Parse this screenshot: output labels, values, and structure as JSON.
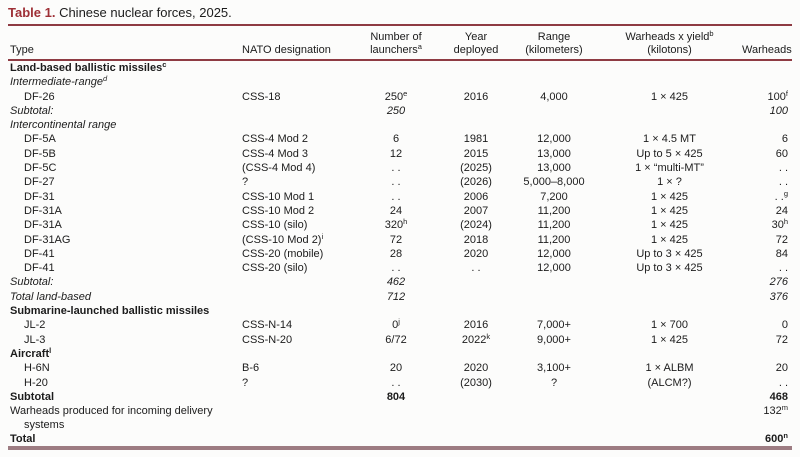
{
  "title": {
    "label": "Table 1.",
    "text": " Chinese nuclear forces, 2025."
  },
  "colors": {
    "accent_maroon": "#9e2f36",
    "rule_maroon": "#8e3b43",
    "bottom_rule": "#9d7c82",
    "text": "#1c1c1c",
    "background": "#fcfcfb"
  },
  "table": {
    "columns": [
      {
        "lines": [
          "Type"
        ],
        "align": "left"
      },
      {
        "lines": [
          "NATO designation"
        ],
        "align": "left"
      },
      {
        "lines": [
          "Number of",
          "launchers^a"
        ],
        "align": "center"
      },
      {
        "lines": [
          "Year",
          "deployed"
        ],
        "align": "center"
      },
      {
        "lines": [
          "Range",
          "(kilometers)"
        ],
        "align": "center"
      },
      {
        "lines": [
          "Warheads x yield^b",
          "(kilotons)"
        ],
        "align": "center"
      },
      {
        "lines": [
          "Warheads"
        ],
        "align": "right"
      }
    ],
    "rows": [
      {
        "style": "section",
        "cells": [
          "Land-based ballistic missiles^c",
          "",
          "",
          "",
          "",
          "",
          ""
        ]
      },
      {
        "style": "subsection",
        "cells": [
          "Intermediate-range^d",
          "",
          "",
          "",
          "",
          "",
          ""
        ]
      },
      {
        "style": "data",
        "cells": [
          "DF-26",
          "CSS-18",
          "250^e",
          "2016",
          "4,000",
          "1 × 425",
          "100^f"
        ]
      },
      {
        "style": "subtotal",
        "cells": [
          "Subtotal:",
          "",
          "250",
          "",
          "",
          "",
          "100"
        ]
      },
      {
        "style": "subsection",
        "cells": [
          "Intercontinental range",
          "",
          "",
          "",
          "",
          "",
          ""
        ]
      },
      {
        "style": "data",
        "cells": [
          "DF-5A",
          "CSS-4 Mod 2",
          "6",
          "1981",
          "12,000",
          "1 × 4.5 MT",
          "6"
        ]
      },
      {
        "style": "data",
        "cells": [
          "DF-5B",
          "CSS-4 Mod 3",
          "12",
          "2015",
          "13,000",
          "Up to 5 × 425",
          "60"
        ]
      },
      {
        "style": "data",
        "cells": [
          "DF-5C",
          "(CSS-4 Mod 4)",
          ". .",
          "(2025)",
          "13,000",
          "1 × “multi-MT”",
          ". ."
        ]
      },
      {
        "style": "data",
        "cells": [
          "DF-27",
          "?",
          ". .",
          "(2026)",
          "5,000–8,000",
          "1 × ?",
          ". ."
        ]
      },
      {
        "style": "data",
        "cells": [
          "DF-31",
          "CSS-10 Mod 1",
          ". .",
          "2006",
          "7,200",
          "1 × 425",
          ". .^g"
        ]
      },
      {
        "style": "data",
        "cells": [
          "DF-31A",
          "CSS-10 Mod 2",
          "24",
          "2007",
          "11,200",
          "1 × 425",
          "24"
        ]
      },
      {
        "style": "data",
        "cells": [
          "DF-31A",
          "CSS-10 (silo)",
          "320^h",
          "(2024)",
          "11,200",
          "1 × 425",
          "30^h"
        ]
      },
      {
        "style": "data",
        "cells": [
          "DF-31AG",
          "(CSS-10 Mod 2)^i",
          "72",
          "2018",
          "11,200",
          "1 × 425",
          "72"
        ]
      },
      {
        "style": "data",
        "cells": [
          "DF-41",
          "CSS-20 (mobile)",
          "28",
          "2020",
          "12,000",
          "Up to 3 × 425",
          "84"
        ]
      },
      {
        "style": "data",
        "cells": [
          "DF-41",
          "CSS-20 (silo)",
          ". .",
          ". .",
          "12,000",
          "Up to 3 × 425",
          ". ."
        ]
      },
      {
        "style": "subtotal",
        "cells": [
          "Subtotal:",
          "",
          "462",
          "",
          "",
          "",
          "276"
        ]
      },
      {
        "style": "subtotal",
        "cells": [
          "Total land-based",
          "",
          "712",
          "",
          "",
          "",
          "376"
        ]
      },
      {
        "style": "section",
        "cells": [
          "Submarine-launched ballistic missiles",
          "",
          "",
          "",
          "",
          "",
          ""
        ]
      },
      {
        "style": "data",
        "cells": [
          "JL-2",
          "CSS-N-14",
          "0^j",
          "2016",
          "7,000+",
          "1 × 700",
          "0"
        ]
      },
      {
        "style": "data",
        "cells": [
          "JL-3",
          "CSS-N-20",
          "6/72",
          "2022^k",
          "9,000+",
          "1 × 425",
          "72"
        ]
      },
      {
        "style": "section",
        "cells": [
          "Aircraft^l",
          "",
          "",
          "",
          "",
          "",
          ""
        ]
      },
      {
        "style": "data",
        "cells": [
          "H-6N",
          "B-6",
          "20",
          "2020",
          "3,100+",
          "1 × ALBM",
          "20"
        ]
      },
      {
        "style": "data",
        "cells": [
          "H-20",
          "?",
          ". .",
          "(2030)",
          "?",
          "(ALCM?)",
          ". ."
        ]
      },
      {
        "style": "total",
        "cells": [
          "Subtotal",
          "",
          "804",
          "",
          "",
          "",
          "468"
        ]
      },
      {
        "style": "note",
        "cells": [
          "Warheads produced for incoming delivery systems",
          "",
          "",
          "",
          "",
          "",
          "132^m"
        ]
      },
      {
        "style": "total",
        "cells": [
          "Total",
          "",
          "",
          "",
          "",
          "",
          "600^n"
        ]
      }
    ]
  }
}
